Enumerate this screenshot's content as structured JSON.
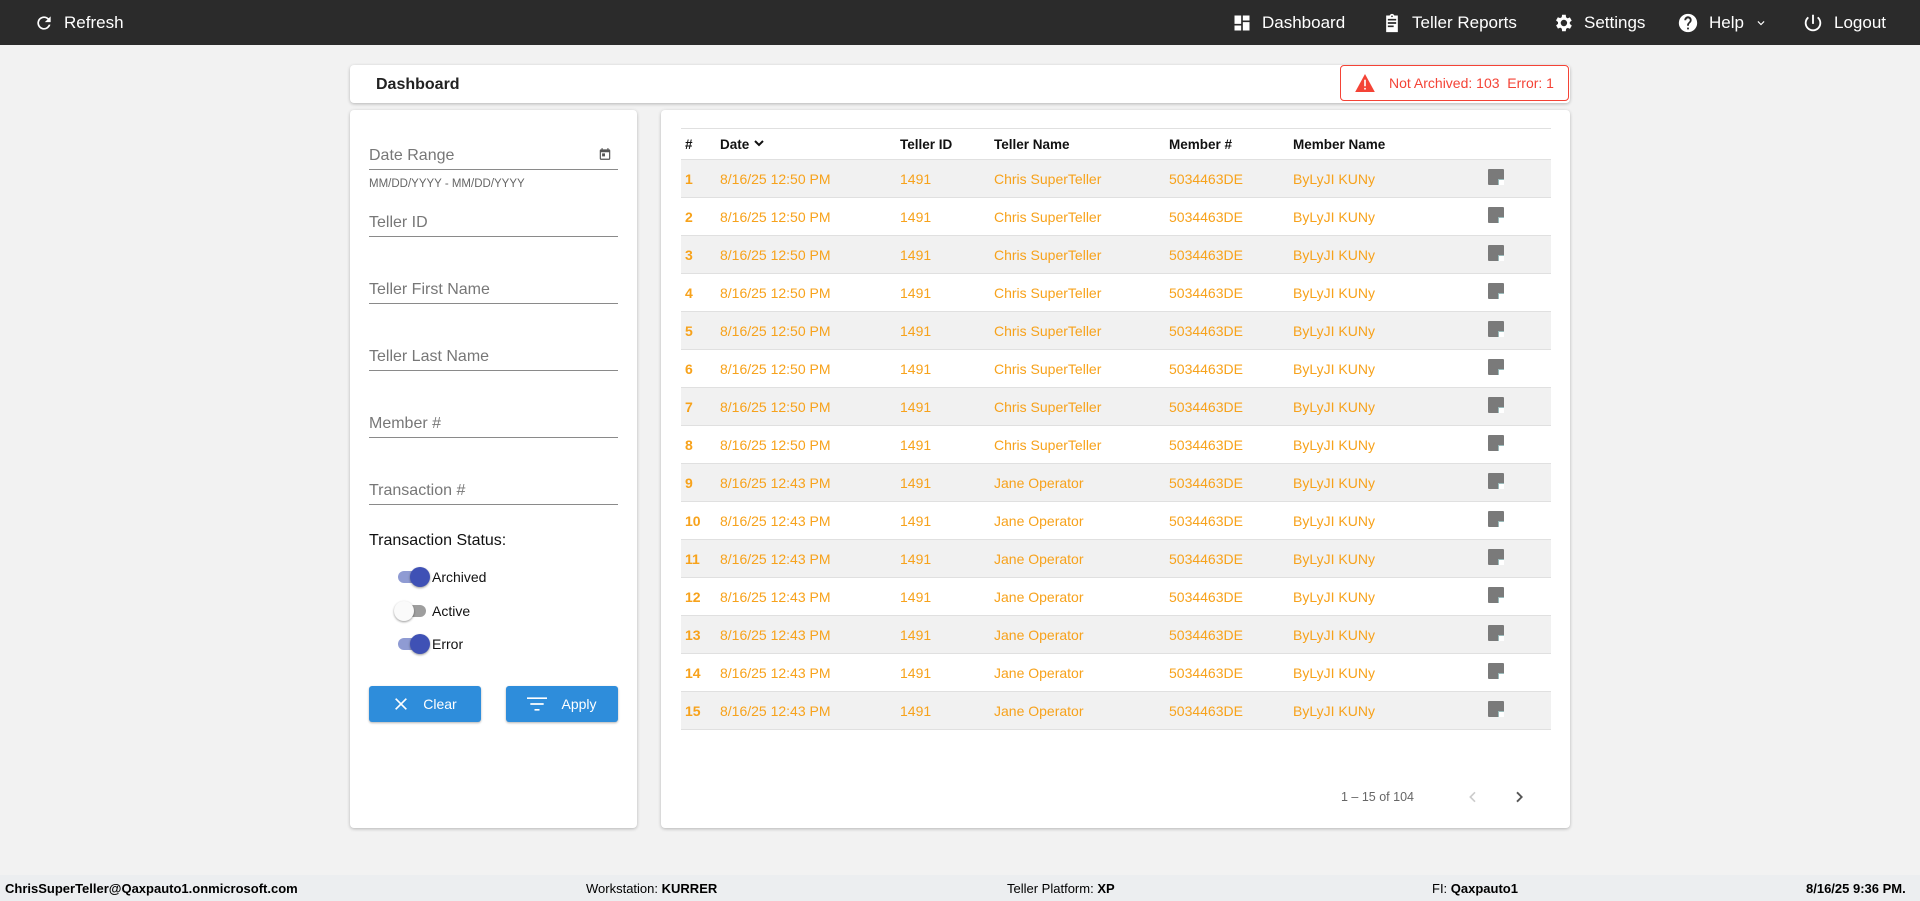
{
  "nav": {
    "refresh": "Refresh",
    "dashboard": "Dashboard",
    "teller_reports": "Teller Reports",
    "settings": "Settings",
    "help": "Help",
    "logout": "Logout"
  },
  "page": {
    "title": "Dashboard"
  },
  "alert": {
    "text": "Not Archived: 103  Error: 1",
    "color": "#f44336"
  },
  "filters": {
    "date_range": "Date Range",
    "date_hint": "MM/DD/YYYY - MM/DD/YYYY",
    "teller_id": "Teller ID",
    "teller_first": "Teller First Name",
    "teller_last": "Teller Last Name",
    "member": "Member #",
    "transaction": "Transaction #",
    "status_label": "Transaction Status:",
    "toggles": [
      {
        "label": "Archived",
        "on": true
      },
      {
        "label": "Active",
        "on": false
      },
      {
        "label": "Error",
        "on": true
      }
    ],
    "clear": "Clear",
    "apply": "Apply"
  },
  "table": {
    "headers": [
      "#",
      "Date",
      "Teller ID",
      "Teller Name",
      "Member #",
      "Member Name"
    ],
    "rows": [
      [
        "1",
        "8/16/25 12:50 PM",
        "1491",
        "Chris SuperTeller",
        "5034463DE",
        "ByLyJI KUNy"
      ],
      [
        "2",
        "8/16/25 12:50 PM",
        "1491",
        "Chris SuperTeller",
        "5034463DE",
        "ByLyJI KUNy"
      ],
      [
        "3",
        "8/16/25 12:50 PM",
        "1491",
        "Chris SuperTeller",
        "5034463DE",
        "ByLyJI KUNy"
      ],
      [
        "4",
        "8/16/25 12:50 PM",
        "1491",
        "Chris SuperTeller",
        "5034463DE",
        "ByLyJI KUNy"
      ],
      [
        "5",
        "8/16/25 12:50 PM",
        "1491",
        "Chris SuperTeller",
        "5034463DE",
        "ByLyJI KUNy"
      ],
      [
        "6",
        "8/16/25 12:50 PM",
        "1491",
        "Chris SuperTeller",
        "5034463DE",
        "ByLyJI KUNy"
      ],
      [
        "7",
        "8/16/25 12:50 PM",
        "1491",
        "Chris SuperTeller",
        "5034463DE",
        "ByLyJI KUNy"
      ],
      [
        "8",
        "8/16/25 12:50 PM",
        "1491",
        "Chris SuperTeller",
        "5034463DE",
        "ByLyJI KUNy"
      ],
      [
        "9",
        "8/16/25 12:43 PM",
        "1491",
        "Jane Operator",
        "5034463DE",
        "ByLyJI KUNy"
      ],
      [
        "10",
        "8/16/25 12:43 PM",
        "1491",
        "Jane Operator",
        "5034463DE",
        "ByLyJI KUNy"
      ],
      [
        "11",
        "8/16/25 12:43 PM",
        "1491",
        "Jane Operator",
        "5034463DE",
        "ByLyJI KUNy"
      ],
      [
        "12",
        "8/16/25 12:43 PM",
        "1491",
        "Jane Operator",
        "5034463DE",
        "ByLyJI KUNy"
      ],
      [
        "13",
        "8/16/25 12:43 PM",
        "1491",
        "Jane Operator",
        "5034463DE",
        "ByLyJI KUNy"
      ],
      [
        "14",
        "8/16/25 12:43 PM",
        "1491",
        "Jane Operator",
        "5034463DE",
        "ByLyJI KUNy"
      ],
      [
        "15",
        "8/16/25 12:43 PM",
        "1491",
        "Jane Operator",
        "5034463DE",
        "ByLyJI KUNy"
      ]
    ],
    "row_color": "#f7a21b"
  },
  "pagination": {
    "range": "1 – 15 of 104"
  },
  "footer": {
    "user": "ChrisSuperTeller@Qaxpauto1.onmicrosoft.com",
    "workstation_label": "Workstation:",
    "workstation": "KURRER",
    "platform_label": "Teller Platform:",
    "platform": "XP",
    "fi_label": "FI:",
    "fi": "Qaxpauto1",
    "datetime": "8/16/25 9:36 PM."
  }
}
